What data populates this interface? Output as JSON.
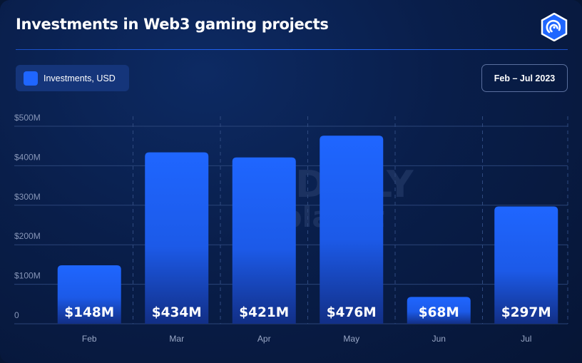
{
  "header": {
    "title": "Investments in Web3 gaming projects",
    "logo_icon": "odaily-logo-icon"
  },
  "legend": {
    "label": "Investments, USD",
    "color": "#1f66ff"
  },
  "date_range": "Feb – Jul 2023",
  "watermark": {
    "line1": "ODAILY",
    "line2": "planet"
  },
  "chart_data": {
    "type": "bar",
    "title": "Investments in Web3 gaming projects",
    "xlabel": "",
    "ylabel": "",
    "categories": [
      "Feb",
      "Mar",
      "Apr",
      "May",
      "Jun",
      "Jul"
    ],
    "series": [
      {
        "name": "Investments, USD",
        "values": [
          148,
          434,
          421,
          476,
          68,
          297
        ],
        "labels": [
          "$148M",
          "$434M",
          "$421M",
          "$476M",
          "$68M",
          "$297M"
        ]
      }
    ],
    "yticks": [
      0,
      100,
      200,
      300,
      400,
      500
    ],
    "ytick_labels": [
      "0",
      "$100M",
      "$200M",
      "$300M",
      "$400M",
      "$500M"
    ],
    "ylim": [
      0,
      500
    ],
    "grid": true,
    "legend_position": "top-left",
    "bar_color": "#1f66ff"
  }
}
